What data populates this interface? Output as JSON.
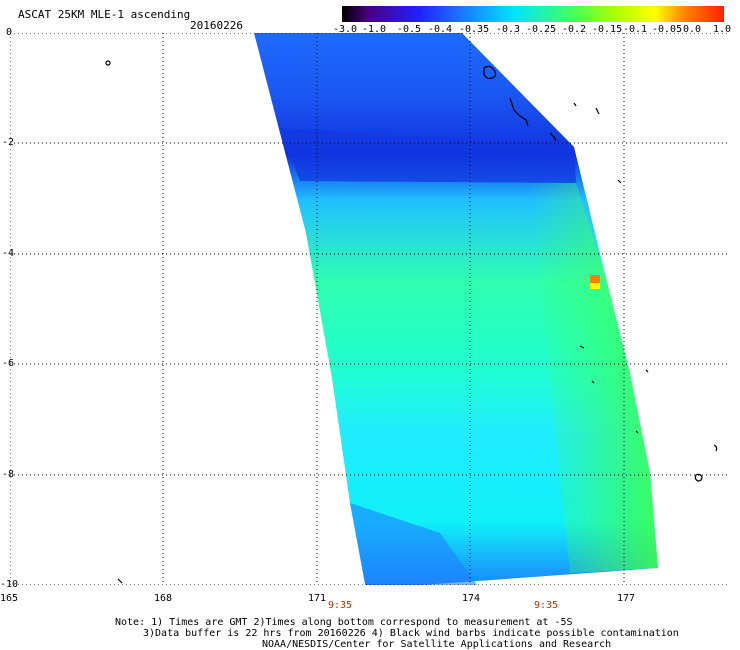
{
  "header": {
    "title": "ASCAT 25KM MLE-1 ascending",
    "date": "20160226"
  },
  "colorbar": {
    "labels": [
      "-3.0",
      "-1.0",
      "-0.5",
      "-0.4",
      "-0.35",
      "-0.3",
      "-0.25",
      "-0.2",
      "-0.15",
      "-0.1",
      "-0.05",
      "0.0",
      "1.0"
    ],
    "stops": [
      "#000000",
      "#4b0082",
      "#2020ff",
      "#1e6bff",
      "#00e5ff",
      "#40ff60",
      "#b0ff00",
      "#ffff00",
      "#ff8000",
      "#ff2000"
    ]
  },
  "axes": {
    "lat_labels": [
      "0",
      "-2",
      "-4",
      "-6",
      "-8",
      "-10"
    ],
    "lon_labels": [
      "165",
      "168",
      "171",
      "174",
      "177"
    ],
    "time_labels": [
      "9:35",
      "9:35"
    ]
  },
  "notes": {
    "line1": "Note: 1) Times are GMT 2)Times along bottom correspond to measurement at -5S",
    "line2": "3)Data buffer is 22 hrs from 20160226 4) Black wind barbs indicate possible contamination",
    "line3": "NOAA/NESDIS/Center for Satellite Applications and Research"
  }
}
